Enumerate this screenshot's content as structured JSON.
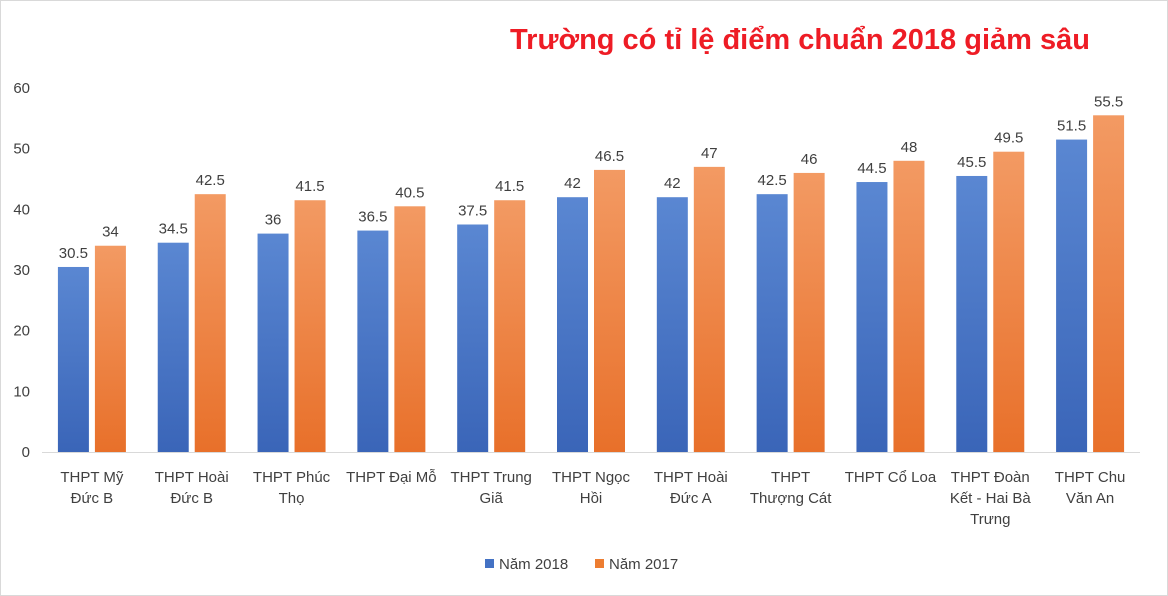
{
  "chart_data": {
    "type": "bar",
    "title": "Trường có tỉ lệ điểm chuẩn 2018 giảm sâu",
    "xlabel": "",
    "ylabel": "",
    "ylim": [
      0,
      60
    ],
    "yticks": [
      0,
      10,
      20,
      30,
      40,
      50,
      60
    ],
    "grid": false,
    "legend_position": "bottom",
    "categories": [
      [
        "THPT Mỹ",
        "Đức B"
      ],
      [
        "THPT Hoài",
        "Đức B"
      ],
      [
        "THPT Phúc",
        "Thọ"
      ],
      [
        "THPT Đại Mỗ"
      ],
      [
        "THPT Trung",
        "Giã"
      ],
      [
        "THPT Ngọc",
        "Hồi"
      ],
      [
        "THPT Hoài",
        "Đức A"
      ],
      [
        "THPT",
        "Thượng Cát"
      ],
      [
        "THPT Cổ Loa"
      ],
      [
        "THPT Đoàn",
        "Kết - Hai Bà",
        "Trưng"
      ],
      [
        "THPT Chu",
        "Văn An"
      ]
    ],
    "series": [
      {
        "name": "Năm 2018",
        "color": "#4472c4",
        "values": [
          30.5,
          34.5,
          36,
          36.5,
          37.5,
          42,
          42,
          42.5,
          44.5,
          45.5,
          51.5
        ],
        "labels": [
          "30.5",
          "34.5",
          "36",
          "36.5",
          "37.5",
          "42",
          "42",
          "42.5",
          "44.5",
          "45.5",
          "51.5"
        ]
      },
      {
        "name": "Năm 2017",
        "color": "#ed7d31",
        "values": [
          34,
          42.5,
          41.5,
          40.5,
          41.5,
          46.5,
          47,
          46,
          48,
          49.5,
          55.5
        ],
        "labels": [
          "34",
          "42.5",
          "41.5",
          "40.5",
          "41.5",
          "46.5",
          "47",
          "46",
          "48",
          "49.5",
          "55.5"
        ]
      }
    ]
  }
}
